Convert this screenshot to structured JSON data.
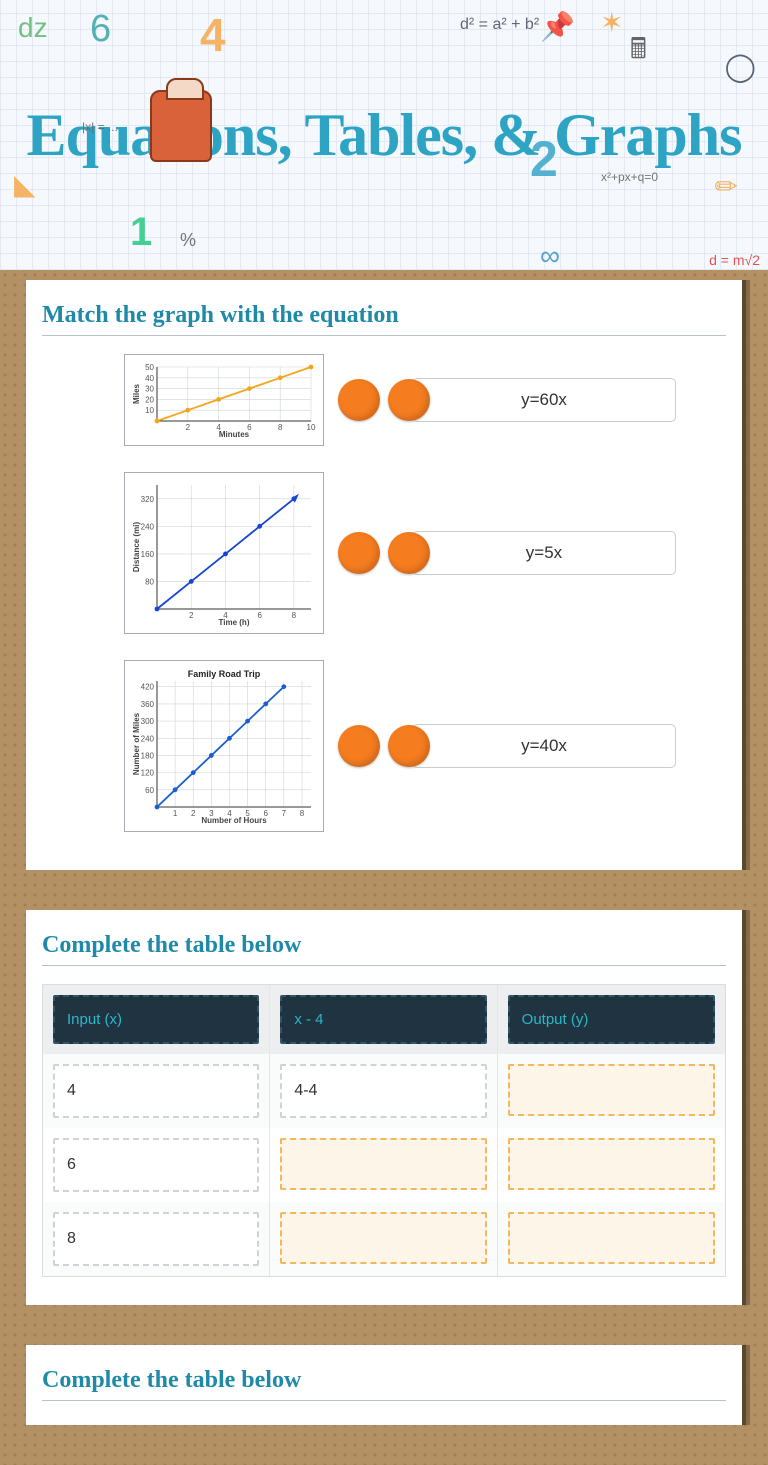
{
  "header": {
    "title": "Equations, Tables, & Graphs"
  },
  "section1": {
    "title": "Match the graph with the equation",
    "graphs": [
      {
        "xlabel": "Minutes",
        "ylabel": "Miles",
        "yticks": [
          10,
          20,
          30,
          40,
          50
        ],
        "xticks": [
          2,
          4,
          6,
          8,
          10
        ],
        "ylim": 50,
        "xlim": 10,
        "line_color": "#f4a61a",
        "point_color": "#f4a61a",
        "points": [
          [
            0,
            0
          ],
          [
            2,
            10
          ],
          [
            4,
            20
          ],
          [
            6,
            30
          ],
          [
            8,
            40
          ],
          [
            10,
            50
          ]
        ]
      },
      {
        "xlabel": "Time (h)",
        "ylabel": "Distance (mi)",
        "yticks": [
          80,
          160,
          240,
          320
        ],
        "xticks": [
          2,
          4,
          6,
          8
        ],
        "ylim": 360,
        "xlim": 9,
        "line_color": "#1844d6",
        "point_color": "#1844d6",
        "label_color": "#1020c8",
        "points": [
          [
            0,
            0
          ],
          [
            2,
            80
          ],
          [
            4,
            160
          ],
          [
            6,
            240
          ],
          [
            8,
            320
          ]
        ],
        "arrow": true
      },
      {
        "title": "Family Road Trip",
        "xlabel": "Number of Hours",
        "ylabel": "Number of Miles",
        "yticks": [
          60,
          120,
          180,
          240,
          300,
          360,
          420
        ],
        "xticks": [
          1,
          2,
          3,
          4,
          5,
          6,
          7,
          8
        ],
        "ylim": 440,
        "xlim": 8.5,
        "line_color": "#1a5fd0",
        "point_color": "#1a5fd0",
        "points": [
          [
            0,
            0
          ],
          [
            1,
            60
          ],
          [
            2,
            120
          ],
          [
            3,
            180
          ],
          [
            4,
            240
          ],
          [
            5,
            300
          ],
          [
            6,
            360
          ],
          [
            7,
            420
          ]
        ]
      }
    ],
    "equations": [
      "y=60x",
      "y=5x",
      "y=40x"
    ]
  },
  "section2": {
    "title": "Complete the table below",
    "headers": [
      "Input (x)",
      "x - 4",
      "Output (y)"
    ],
    "rows": [
      [
        {
          "v": "4"
        },
        {
          "v": "4-4"
        },
        {
          "v": "",
          "blank": true
        }
      ],
      [
        {
          "v": "6"
        },
        {
          "v": "",
          "blank": true
        },
        {
          "v": "",
          "blank": true
        }
      ],
      [
        {
          "v": "8"
        },
        {
          "v": "",
          "blank": true
        },
        {
          "v": "",
          "blank": true
        }
      ]
    ]
  },
  "section3": {
    "title": "Complete the table below"
  },
  "colors": {
    "accent": "#2da4c4",
    "dot": "#f57c1f",
    "header_cell_bg": "#1f3440",
    "header_cell_text": "#2db6c9",
    "blank_bg": "#fdf6e8",
    "blank_border": "#f3b75e"
  }
}
